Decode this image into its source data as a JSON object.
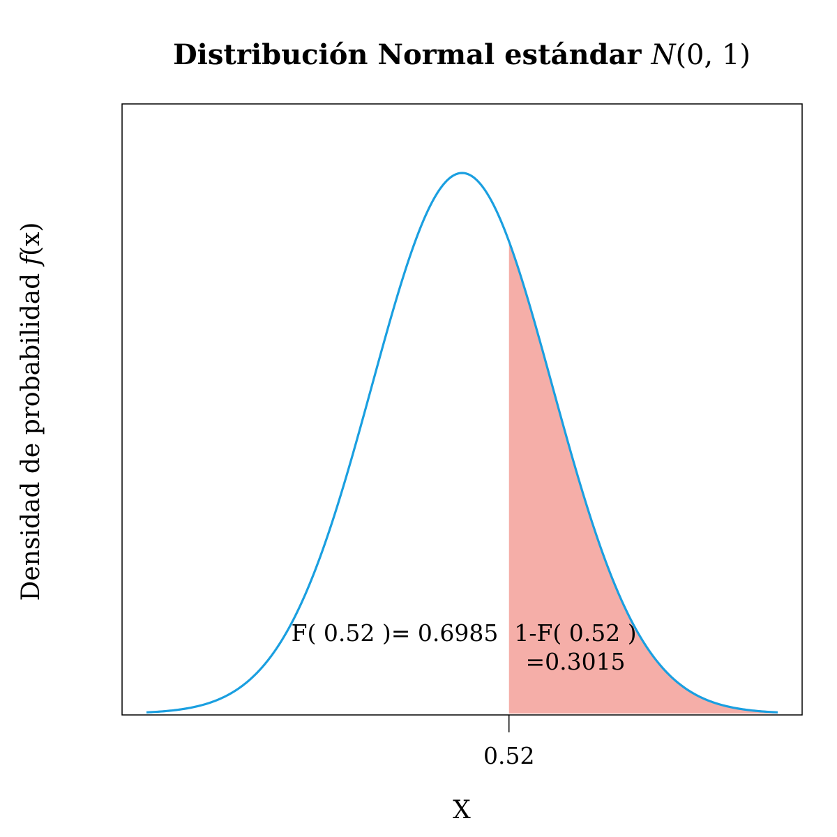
{
  "chart_data": {
    "type": "area",
    "title": "Distribución Normal estándar",
    "title_math": {
      "symbol": "N",
      "args": "(0, 1)"
    },
    "xlabel": "X",
    "ylabel": "Densidad de probabilidad",
    "ylabel_math": {
      "symbol": "f",
      "args": "(x)"
    },
    "distribution": {
      "name": "normal",
      "mean": 0,
      "sd": 1
    },
    "xlim": [
      -3.5,
      3.5
    ],
    "ylim": [
      0,
      0.4
    ],
    "x_ticks": [
      0.52
    ],
    "x_tick_labels": [
      "0.52"
    ],
    "y_ticks": [],
    "grid": false,
    "legend": "none",
    "cutoff": 0.52,
    "shade": {
      "from": 0.52,
      "to": 3.5
    },
    "annotations": {
      "left": "F( 0.52 )= 0.6985",
      "right_line1": "1-F( 0.52 )",
      "right_line2": "=0.3015"
    },
    "colors": {
      "curve": "#1a9fe0",
      "shade": "#f5aea8",
      "axes": "#000000"
    }
  }
}
